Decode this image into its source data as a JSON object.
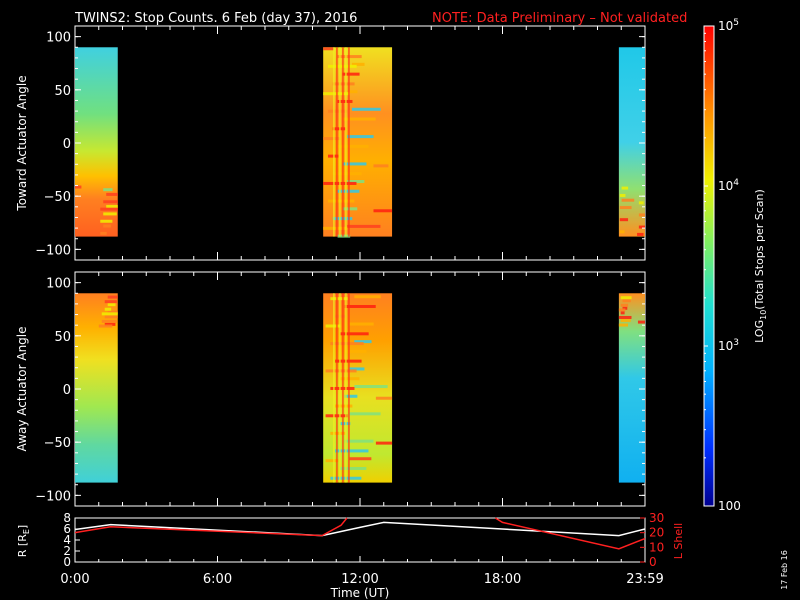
{
  "title": "TWINS2: Stop Counts.  6 Feb (day  37), 2016",
  "note": "NOTE: Data Preliminary – Not validated",
  "side_date": "17 Feb 16",
  "chart_data": [
    {
      "type": "heatmap",
      "name": "toward",
      "ylabel": "Toward Actuator Angle",
      "ylim": [
        -110,
        110
      ],
      "y_ticks": [
        100,
        50,
        0,
        -50,
        -100
      ],
      "x_tick_labels": [
        "0:00",
        "6:00",
        "12:00",
        "18:00",
        "23:59"
      ],
      "blocks_hours": [
        [
          0.0,
          1.8
        ],
        [
          10.45,
          13.35
        ],
        [
          22.9,
          24.0
        ]
      ],
      "angle_range": [
        -88,
        90
      ]
    },
    {
      "type": "heatmap",
      "name": "away",
      "ylabel": "Away Actuator Angle",
      "ylim": [
        -110,
        110
      ],
      "y_ticks": [
        100,
        50,
        0,
        -50,
        -100
      ],
      "x_tick_labels": [
        "0:00",
        "6:00",
        "12:00",
        "18:00",
        "23:59"
      ],
      "blocks_hours": [
        [
          0.0,
          1.8
        ],
        [
          10.45,
          13.35
        ],
        [
          22.9,
          24.0
        ]
      ],
      "angle_range": [
        -88,
        90
      ]
    },
    {
      "type": "line",
      "name": "orbit",
      "ylabel": "R [R",
      "ylabel_sub": "E",
      "ylabel_close": "]",
      "ylabel_right": "L Shell",
      "xlabel": "Time (UT)",
      "x_ticks_hours": [
        0,
        6,
        12,
        18,
        24
      ],
      "x_tick_labels": [
        "0:00",
        "6:00",
        "12:00",
        "18:00",
        "23:59"
      ],
      "ylim": [
        0,
        8
      ],
      "y_ticks": [
        0,
        2,
        4,
        6,
        8
      ],
      "ylim_right": [
        0,
        30
      ],
      "y_ticks_right": [
        0,
        10,
        20,
        30
      ],
      "series": [
        {
          "color": "#ffffff",
          "x": [
            0,
            1.5,
            10.4,
            12.0,
            13.0,
            22.9,
            24.0
          ],
          "y": [
            5.9,
            6.8,
            4.8,
            6.3,
            7.2,
            4.8,
            6.0
          ]
        },
        {
          "color": "#ff2020",
          "x": [
            0,
            1.5,
            10.4,
            11.2,
            11.45
          ],
          "y": [
            20,
            24,
            18,
            25,
            30
          ],
          "axis": "right"
        },
        {
          "color": "#ff2020",
          "x": [
            17.7,
            18.0,
            22.9,
            24.0
          ],
          "y": [
            30,
            27,
            9,
            16
          ],
          "axis": "right"
        }
      ]
    }
  ],
  "colorbar": {
    "label": "LOG",
    "label_sub": "10",
    "label_rest": "(Total Stops per Scan)",
    "ticks": [
      {
        "log": 2,
        "text": "100"
      },
      {
        "log": 3,
        "base": "10",
        "exp": "3"
      },
      {
        "log": 4,
        "base": "10",
        "exp": "4"
      },
      {
        "log": 5,
        "base": "10",
        "exp": "5"
      }
    ],
    "range_log": [
      2,
      5
    ]
  },
  "colors": {
    "title": "#ffffff",
    "note": "#ff2020",
    "background": "#000000",
    "l_shell": "#ff2020"
  }
}
